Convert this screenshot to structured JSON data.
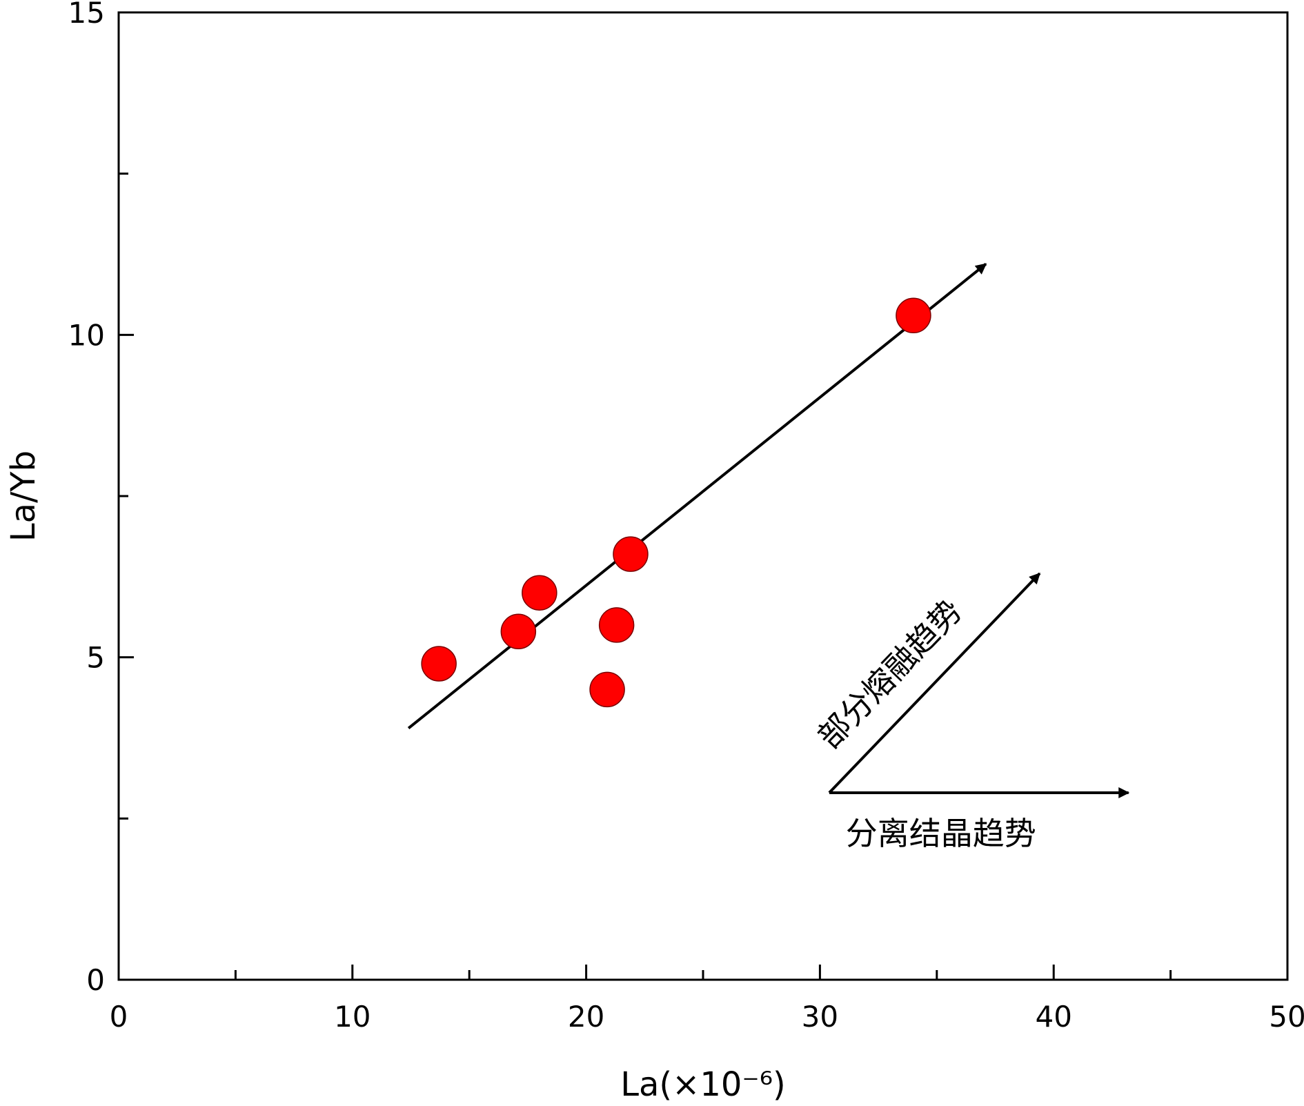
{
  "chart_data": {
    "type": "scatter",
    "title": "",
    "xlabel": "La(×10⁻⁶)",
    "ylabel": "La/Yb",
    "xlim": [
      0,
      50
    ],
    "ylim": [
      0,
      15
    ],
    "x_major_ticks": [
      0,
      10,
      20,
      30,
      40,
      50
    ],
    "x_tick_labels": [
      "0",
      "10",
      "20",
      "30",
      "40",
      "50"
    ],
    "x_minor_ticks": [
      5,
      15,
      25,
      35,
      45
    ],
    "y_major_ticks": [
      0,
      5,
      10,
      15
    ],
    "y_tick_labels": [
      "0",
      "5",
      "10",
      "15"
    ],
    "y_minor_ticks": [
      2.5,
      7.5,
      12.5
    ],
    "grid": false,
    "legend": "none",
    "marker_color": "#ff0000",
    "series": [
      {
        "points": [
          {
            "x": 13.7,
            "y": 4.9
          },
          {
            "x": 17.1,
            "y": 5.4
          },
          {
            "x": 18.0,
            "y": 6.0
          },
          {
            "x": 20.9,
            "y": 4.5
          },
          {
            "x": 21.3,
            "y": 5.5
          },
          {
            "x": 21.9,
            "y": 6.6
          },
          {
            "x": 34.0,
            "y": 10.3
          }
        ]
      }
    ],
    "trend_line": {
      "x0": 12.4,
      "y0": 3.9,
      "x1": 37.1,
      "y1": 11.1
    },
    "annotations": {
      "partial_melting": {
        "label": "部分熔融趋势",
        "from": [
          30.4,
          2.9
        ],
        "to": [
          39.4,
          6.3
        ]
      },
      "fractional_crystallization": {
        "label": "分离结晶趋势",
        "from": [
          30.4,
          2.9
        ],
        "to": [
          43.2,
          2.9
        ]
      }
    }
  }
}
